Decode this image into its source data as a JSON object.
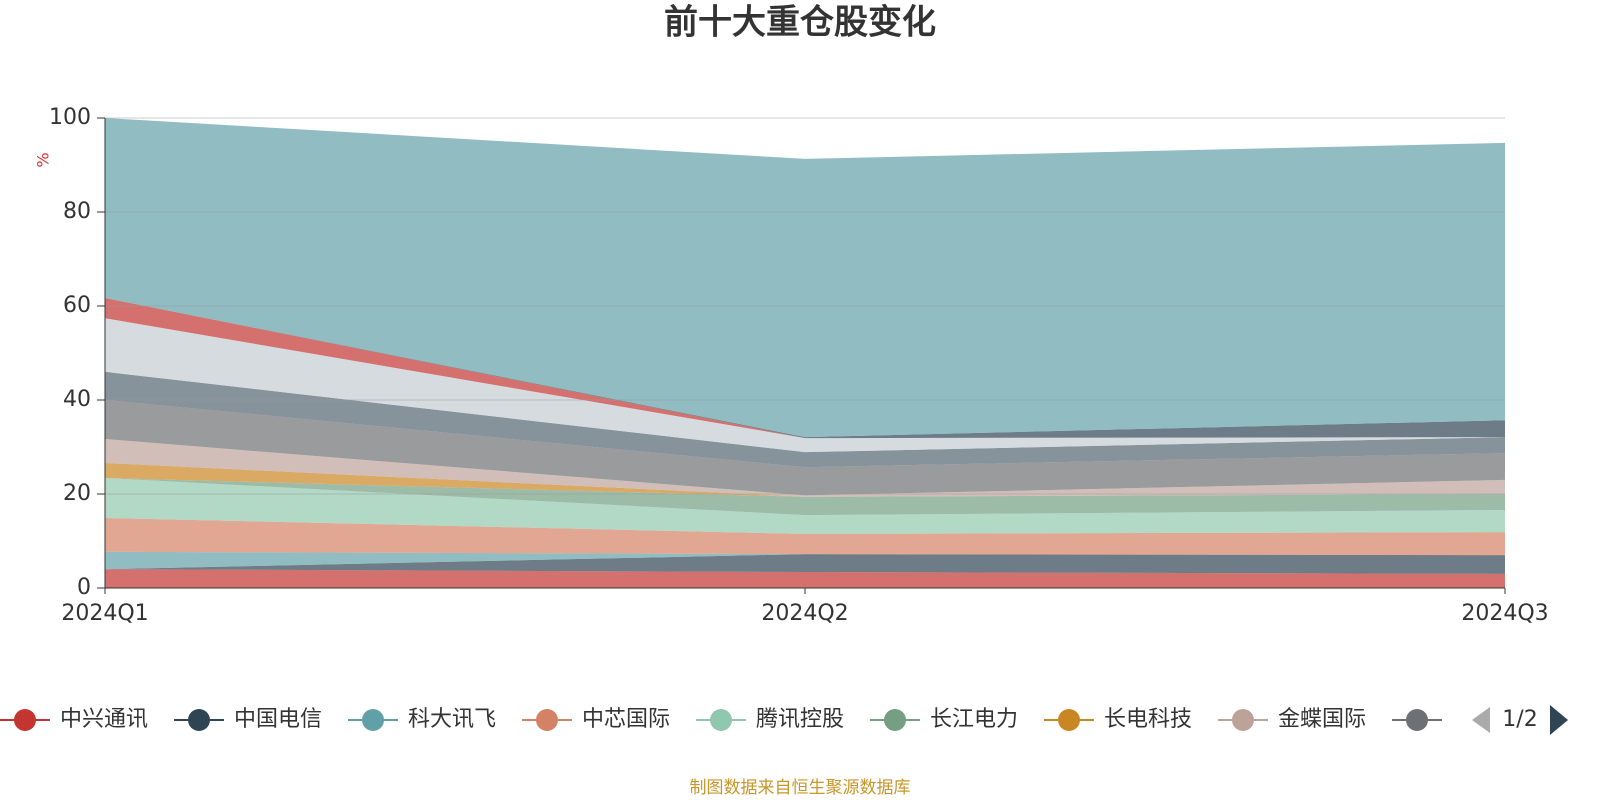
{
  "chart_data": {
    "type": "stacked-area",
    "title": "前十大重仓股变化",
    "y_label": "%",
    "categories": [
      "2024Q1",
      "2024Q2",
      "2024Q3"
    ],
    "ylim": [
      0,
      100
    ],
    "yticks": [
      0,
      20,
      40,
      60,
      80,
      100
    ],
    "grid": true,
    "series": [
      {
        "name": "中兴通讯",
        "color": "#c23531",
        "values": [
          4.0,
          3.4,
          3.0
        ]
      },
      {
        "name": "中国电信",
        "color": "#2f4554",
        "values": [
          0,
          3.8,
          4.0
        ]
      },
      {
        "name": "科大讯飞",
        "color": "#61a0a8",
        "values": [
          3.7,
          0,
          0
        ]
      },
      {
        "name": "中芯国际",
        "color": "#d48265",
        "values": [
          7.2,
          4.3,
          4.9
        ]
      },
      {
        "name": "腾讯控股",
        "color": "#91c7ae",
        "values": [
          8.5,
          4.0,
          4.7
        ]
      },
      {
        "name": "长江电力",
        "color": "#749f83",
        "values": [
          0,
          3.9,
          3.4
        ]
      },
      {
        "name": "长电科技",
        "color": "#ca8622",
        "values": [
          3.2,
          0,
          0
        ]
      },
      {
        "name": "金蝶国际",
        "color": "#bda29a",
        "values": [
          5.1,
          0.3,
          3.0
        ]
      },
      {
        "color": "#6e7074",
        "values": [
          8.3,
          6.0,
          5.7
        ]
      },
      {
        "color": "#546570",
        "values": [
          6.0,
          3.2,
          3.4
        ]
      },
      {
        "color": "#c4ccd3",
        "values": [
          11.4,
          3.0,
          0
        ]
      },
      {
        "color": "#c23531",
        "values": [
          4.3,
          0,
          0
        ]
      },
      {
        "color": "#2f4554",
        "values": [
          0,
          0.2,
          3.6
        ]
      },
      {
        "color": "#61a0a8",
        "values": [
          38.3,
          59.2,
          59.0
        ]
      }
    ],
    "legend_page": "1/2",
    "source": "制图数据来自恒生聚源数据库"
  }
}
